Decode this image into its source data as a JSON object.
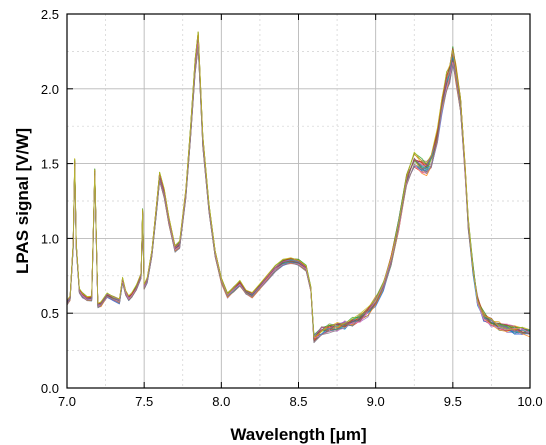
{
  "chart_data": {
    "type": "line",
    "title": "",
    "xlabel": "Wavelength [μm]",
    "ylabel": "LPAS signal [V/W]",
    "xlim": [
      7.0,
      10.0
    ],
    "ylim": [
      0.0,
      2.5
    ],
    "xticks": [
      "7.0",
      "7.5",
      "8.0",
      "8.5",
      "9.0",
      "9.5",
      "10.0"
    ],
    "yticks": [
      "0.0",
      "0.5",
      "1.0",
      "1.5",
      "2.0",
      "2.5"
    ],
    "grid": true,
    "legend": "none",
    "series_count_note": "many overlapping measurement traces",
    "series": [
      {
        "x": [
          7.0,
          7.02,
          7.04,
          7.05,
          7.06,
          7.08,
          7.1,
          7.13,
          7.16,
          7.18,
          7.2,
          7.22,
          7.26,
          7.3,
          7.34,
          7.36,
          7.38,
          7.4,
          7.42,
          7.45,
          7.48,
          7.49,
          7.5,
          7.52,
          7.55,
          7.58,
          7.6,
          7.63,
          7.66,
          7.7,
          7.73,
          7.77,
          7.8,
          7.83,
          7.85,
          7.88,
          7.92,
          7.96,
          8.0,
          8.04,
          8.08,
          8.12,
          8.16,
          8.2,
          8.25,
          8.3,
          8.35,
          8.4,
          8.45,
          8.5,
          8.55,
          8.58,
          8.6,
          8.65,
          8.7,
          8.75,
          8.8,
          8.85,
          8.9,
          8.95,
          9.0,
          9.05,
          9.1,
          9.15,
          9.2,
          9.25,
          9.3,
          9.33,
          9.36,
          9.4,
          9.43,
          9.46,
          9.48,
          9.5,
          9.52,
          9.55,
          9.58,
          9.6,
          9.63,
          9.66,
          9.7,
          9.75,
          9.8,
          9.85,
          9.9,
          9.95,
          10.0
        ],
        "values": [
          0.57,
          0.6,
          0.95,
          1.5,
          0.95,
          0.65,
          0.62,
          0.6,
          0.6,
          1.43,
          0.55,
          0.56,
          0.62,
          0.6,
          0.58,
          0.72,
          0.64,
          0.6,
          0.62,
          0.67,
          0.75,
          1.17,
          0.68,
          0.72,
          0.9,
          1.2,
          1.41,
          1.3,
          1.12,
          0.93,
          0.96,
          1.3,
          1.7,
          2.15,
          2.33,
          1.65,
          1.2,
          0.9,
          0.72,
          0.62,
          0.66,
          0.7,
          0.64,
          0.62,
          0.68,
          0.74,
          0.8,
          0.84,
          0.85,
          0.84,
          0.8,
          0.66,
          0.33,
          0.38,
          0.4,
          0.41,
          0.42,
          0.44,
          0.47,
          0.51,
          0.58,
          0.68,
          0.85,
          1.1,
          1.4,
          1.52,
          1.48,
          1.47,
          1.52,
          1.68,
          1.9,
          2.05,
          2.1,
          2.22,
          2.1,
          1.9,
          1.45,
          1.1,
          0.8,
          0.58,
          0.48,
          0.44,
          0.41,
          0.4,
          0.39,
          0.38,
          0.37
        ]
      }
    ]
  }
}
